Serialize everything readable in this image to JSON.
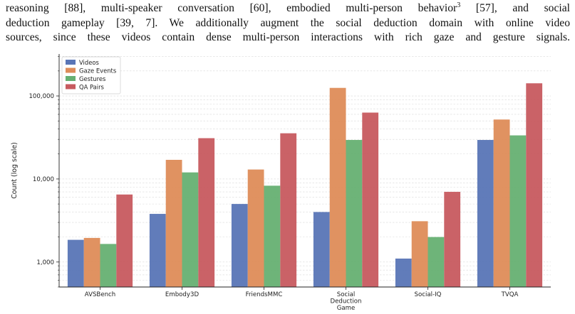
{
  "paragraph": {
    "line1_a": "reasoning [88], multi-speaker conversation [60], embodied multi-person behavior",
    "line1_sup": "3",
    "line1_b": " [57], and social",
    "line2": "deduction gameplay [39, 7]. We additionally augment the social deduction domain with online video",
    "line3": "sources, since these videos contain dense multi-person interactions with rich gaze and gesture signals."
  },
  "chart_data": {
    "type": "bar",
    "title": "",
    "xlabel": "",
    "ylabel": "Count (log scale)",
    "yscale": "log",
    "ylim": [
      500,
      320000
    ],
    "yticks": [
      1000,
      10000,
      100000
    ],
    "ytick_labels": [
      "1,000",
      "10,000",
      "100,000"
    ],
    "grid": "y-minor-dashed",
    "legend_position": "top-left",
    "categories": [
      [
        "AVSBench"
      ],
      [
        "Embody3D"
      ],
      [
        "FriendsMMC"
      ],
      [
        "Social",
        "Deduction",
        "Game"
      ],
      [
        "Social-IQ"
      ],
      [
        "TVQA"
      ]
    ],
    "series": [
      {
        "name": "Videos",
        "color": "#5975b6",
        "values": [
          1850,
          3800,
          5000,
          4000,
          1100,
          29500
        ]
      },
      {
        "name": "Gaze Events",
        "color": "#de8c59",
        "values": [
          1950,
          17000,
          13000,
          125000,
          3100,
          52000
        ]
      },
      {
        "name": "Gestures",
        "color": "#66b072",
        "values": [
          1650,
          12000,
          8300,
          29500,
          2000,
          33500
        ]
      },
      {
        "name": "QA Pairs",
        "color": "#c75a5f",
        "values": [
          6500,
          31000,
          35500,
          63000,
          7000,
          142000
        ]
      }
    ]
  }
}
